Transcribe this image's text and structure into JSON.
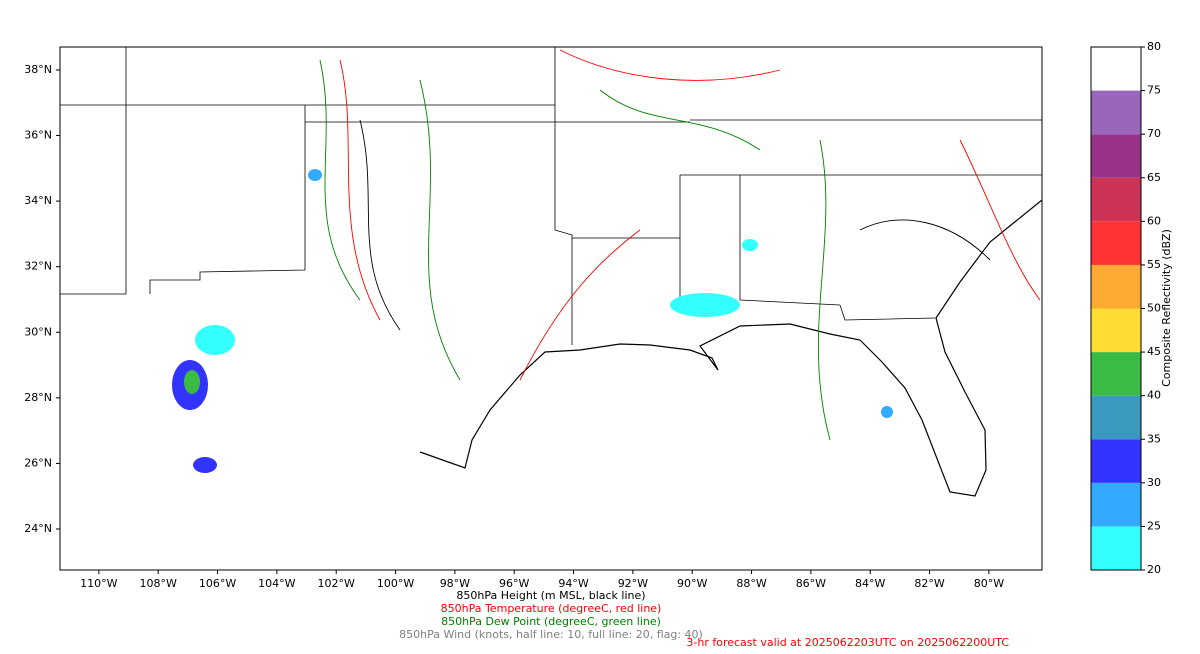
{
  "map": {
    "lonlim": [
      -111.31,
      -78.21
    ],
    "latlim": [
      22.75,
      38.7
    ],
    "lon_ticks": [
      {
        "value": -110,
        "label": "110°W"
      },
      {
        "value": -108,
        "label": "108°W"
      },
      {
        "value": -106,
        "label": "106°W"
      },
      {
        "value": -104,
        "label": "104°W"
      },
      {
        "value": -102,
        "label": "102°W"
      },
      {
        "value": -100,
        "label": "100°W"
      },
      {
        "value": -98,
        "label": "98°W"
      },
      {
        "value": -96,
        "label": "96°W"
      },
      {
        "value": -94,
        "label": "94°W"
      },
      {
        "value": -92,
        "label": "92°W"
      },
      {
        "value": -90,
        "label": "90°W"
      },
      {
        "value": -88,
        "label": "88°W"
      },
      {
        "value": -86,
        "label": "86°W"
      },
      {
        "value": -84,
        "label": "84°W"
      },
      {
        "value": -82,
        "label": "82°W"
      },
      {
        "value": -80,
        "label": "80°W"
      }
    ],
    "lat_ticks": [
      {
        "value": 24,
        "label": "24°N"
      },
      {
        "value": 26,
        "label": "26°N"
      },
      {
        "value": 28,
        "label": "28°N"
      },
      {
        "value": 30,
        "label": "30°N"
      },
      {
        "value": 32,
        "label": "32°N"
      },
      {
        "value": 34,
        "label": "34°N"
      },
      {
        "value": 36,
        "label": "36°N"
      },
      {
        "value": 38,
        "label": "38°N"
      }
    ],
    "colorbar": {
      "label": "Composite Reflectivity (dBZ)",
      "clim": [
        20,
        80
      ],
      "ticks": [
        20,
        25,
        30,
        35,
        40,
        45,
        50,
        55,
        60,
        65,
        70,
        75,
        80
      ],
      "colors": [
        "#33ffff",
        "#33aaff",
        "#3333ff",
        "#3a99bf",
        "#3abb44",
        "#ffdd33",
        "#ffaa33",
        "#ff3333",
        "#cc3355",
        "#993388",
        "#9966bb",
        "#ffffff"
      ]
    }
  },
  "captions": [
    {
      "text": "850hPa Height (m MSL, black line)",
      "color": "#000000"
    },
    {
      "text": "850hPa Temperature (degreeC, red line)",
      "color": "#ff0000"
    },
    {
      "text": "850hPa Dew Point (degreeC, green line)",
      "color": "#008000"
    },
    {
      "text": "850hPa Wind (knots, half line: 10, full line: 20, flag: 40)",
      "color": "#808080"
    }
  ],
  "forecast": {
    "text": "3-hr forecast valid at 2025062203UTC on 2025062200UTC",
    "color": "#ff0000"
  }
}
